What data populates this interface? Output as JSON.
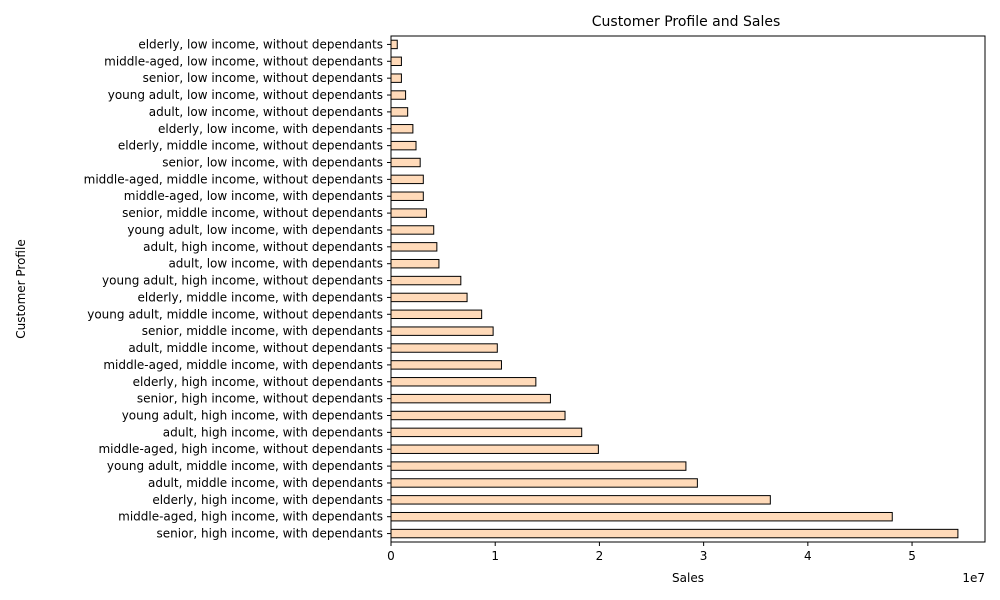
{
  "chart_data": {
    "type": "bar",
    "orientation": "horizontal",
    "title": "Customer Profile and Sales",
    "xlabel": "Sales",
    "ylabel": "Customer Profile",
    "x_scale_label": "1e7",
    "xlim": [
      0,
      57000000
    ],
    "xticks": [
      0,
      10000000,
      20000000,
      30000000,
      40000000,
      50000000
    ],
    "xtick_labels": [
      "0",
      "1",
      "2",
      "3",
      "4",
      "5"
    ],
    "grid": false,
    "bar_color": "#ffdab9",
    "edge_color": "#000000",
    "categories": [
      "senior, high income, with dependants",
      "middle-aged, high income, with dependants",
      "elderly, high income, with dependants",
      "adult, middle income, with dependants",
      "young adult, middle income, with dependants",
      "middle-aged, high income, without dependants",
      "adult, high income, with dependants",
      "young adult, high income, with dependants",
      "senior, high income, without dependants",
      "elderly, high income, without dependants",
      "middle-aged, middle income, with dependants",
      "adult, middle income, without dependants",
      "senior, middle income, with dependants",
      "young adult, middle income, without dependants",
      "elderly, middle income, with dependants",
      "young adult, high income, without dependants",
      "adult, low income, with dependants",
      "adult, high income, without dependants",
      "young adult, low income, with dependants",
      "senior, middle income, without dependants",
      "middle-aged, low income, with dependants",
      "middle-aged, middle income, without dependants",
      "senior, low income, with dependants",
      "elderly, middle income, without dependants",
      "elderly, low income, with dependants",
      "adult, low income, without dependants",
      "young adult, low income, without dependants",
      "senior, low income, without dependants",
      "middle-aged, low income, without dependants",
      "elderly, low income, without dependants"
    ],
    "values": [
      54400000,
      48100000,
      36400000,
      29400000,
      28300000,
      19900000,
      18300000,
      16700000,
      15300000,
      13900000,
      10600000,
      10200000,
      9800000,
      8700000,
      7300000,
      6700000,
      4600000,
      4400000,
      4100000,
      3400000,
      3100000,
      3100000,
      2800000,
      2400000,
      2100000,
      1600000,
      1400000,
      1000000,
      1000000,
      600000
    ]
  }
}
